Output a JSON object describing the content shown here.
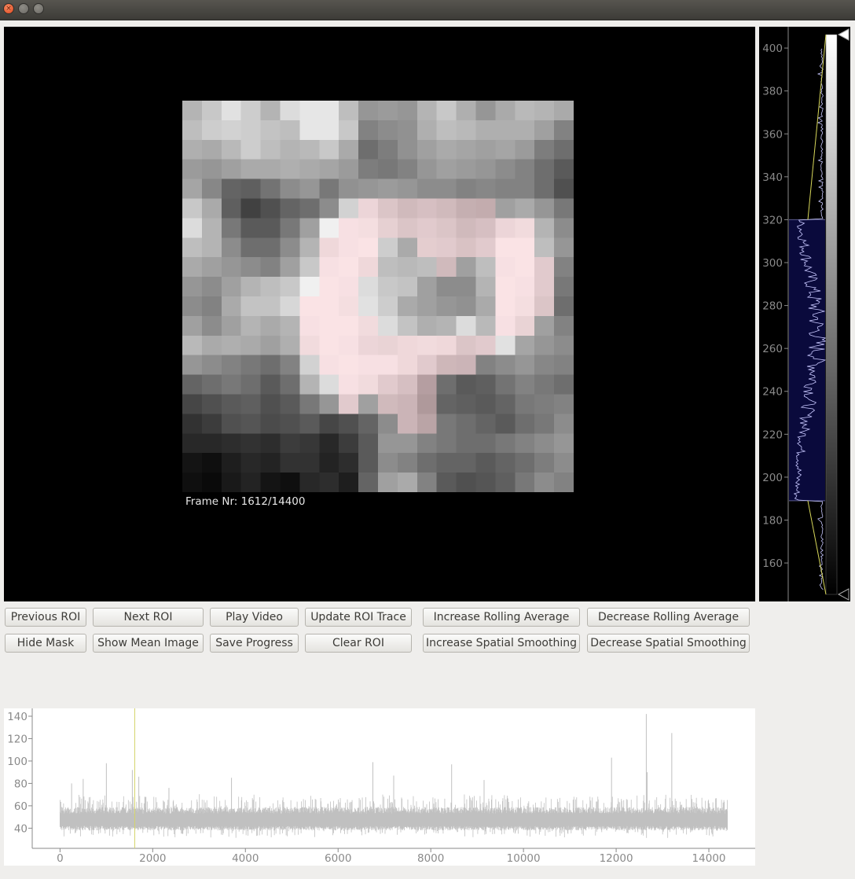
{
  "window": {
    "close_glyph": "×"
  },
  "viewer": {
    "frame_label": "Frame Nr: 1612/14400",
    "pixels": [
      [
        180,
        200,
        225,
        205,
        180,
        220,
        230,
        230,
        190,
        150,
        155,
        150,
        180,
        200,
        175,
        150,
        170,
        185,
        180,
        170
      ],
      [
        190,
        205,
        210,
        205,
        195,
        190,
        230,
        230,
        200,
        130,
        140,
        145,
        175,
        190,
        185,
        175,
        175,
        175,
        160,
        130
      ],
      [
        175,
        170,
        185,
        205,
        190,
        180,
        185,
        200,
        170,
        110,
        125,
        145,
        160,
        170,
        165,
        160,
        165,
        155,
        125,
        110
      ],
      [
        155,
        150,
        160,
        170,
        170,
        175,
        170,
        165,
        155,
        125,
        120,
        130,
        150,
        160,
        155,
        150,
        140,
        130,
        110,
        90
      ],
      [
        165,
        135,
        100,
        95,
        115,
        140,
        150,
        120,
        145,
        150,
        155,
        150,
        140,
        140,
        130,
        135,
        130,
        130,
        110,
        80
      ],
      [
        200,
        170,
        95,
        65,
        80,
        100,
        110,
        140,
        210,
        220,
        190,
        170,
        180,
        170,
        150,
        145,
        160,
        170,
        150,
        120
      ],
      [
        220,
        180,
        120,
        90,
        90,
        120,
        160,
        240,
        240,
        235,
        210,
        190,
        200,
        190,
        170,
        180,
        220,
        230,
        180,
        140
      ],
      [
        190,
        180,
        140,
        110,
        110,
        140,
        180,
        225,
        240,
        245,
        205,
        170,
        205,
        200,
        185,
        200,
        245,
        245,
        190,
        150
      ],
      [
        170,
        160,
        150,
        140,
        130,
        160,
        200,
        240,
        245,
        225,
        190,
        185,
        190,
        170,
        160,
        190,
        240,
        245,
        200,
        130
      ],
      [
        150,
        140,
        160,
        180,
        190,
        200,
        240,
        245,
        240,
        220,
        200,
        195,
        160,
        140,
        140,
        180,
        245,
        240,
        200,
        120
      ],
      [
        140,
        130,
        170,
        195,
        195,
        215,
        245,
        245,
        235,
        225,
        205,
        170,
        160,
        150,
        145,
        170,
        245,
        235,
        190,
        110
      ],
      [
        160,
        140,
        160,
        180,
        170,
        180,
        240,
        245,
        245,
        230,
        220,
        195,
        175,
        180,
        220,
        185,
        240,
        215,
        160,
        130
      ],
      [
        185,
        170,
        175,
        170,
        160,
        175,
        230,
        245,
        240,
        220,
        215,
        225,
        230,
        225,
        190,
        200,
        225,
        165,
        150,
        140
      ],
      [
        150,
        140,
        130,
        120,
        110,
        130,
        210,
        240,
        245,
        240,
        240,
        225,
        200,
        165,
        160,
        130,
        140,
        150,
        135,
        130
      ],
      [
        100,
        110,
        120,
        110,
        90,
        110,
        180,
        220,
        240,
        230,
        200,
        180,
        120,
        110,
        90,
        95,
        115,
        130,
        120,
        110
      ],
      [
        70,
        80,
        90,
        95,
        80,
        90,
        120,
        150,
        200,
        160,
        170,
        160,
        110,
        100,
        95,
        90,
        100,
        120,
        125,
        130
      ],
      [
        50,
        60,
        80,
        85,
        75,
        80,
        90,
        70,
        80,
        100,
        140,
        160,
        130,
        120,
        110,
        100,
        90,
        110,
        120,
        140
      ],
      [
        40,
        40,
        45,
        50,
        45,
        60,
        55,
        40,
        60,
        90,
        150,
        150,
        130,
        120,
        110,
        110,
        120,
        130,
        140,
        150
      ],
      [
        20,
        15,
        30,
        40,
        35,
        50,
        50,
        35,
        45,
        90,
        140,
        130,
        110,
        100,
        100,
        90,
        100,
        110,
        125,
        140
      ],
      [
        15,
        10,
        25,
        35,
        20,
        15,
        40,
        45,
        30,
        100,
        160,
        170,
        130,
        90,
        80,
        85,
        95,
        120,
        140,
        130
      ]
    ],
    "mask_cells": [
      [
        5,
        9
      ],
      [
        5,
        10
      ],
      [
        5,
        11
      ],
      [
        5,
        12
      ],
      [
        5,
        13
      ],
      [
        5,
        14
      ],
      [
        5,
        15
      ],
      [
        6,
        8
      ],
      [
        6,
        9
      ],
      [
        6,
        10
      ],
      [
        6,
        11
      ],
      [
        6,
        12
      ],
      [
        6,
        13
      ],
      [
        6,
        14
      ],
      [
        6,
        15
      ],
      [
        6,
        16
      ],
      [
        6,
        17
      ],
      [
        7,
        7
      ],
      [
        7,
        8
      ],
      [
        7,
        9
      ],
      [
        7,
        12
      ],
      [
        7,
        13
      ],
      [
        7,
        14
      ],
      [
        7,
        15
      ],
      [
        7,
        16
      ],
      [
        7,
        17
      ],
      [
        8,
        7
      ],
      [
        8,
        8
      ],
      [
        8,
        9
      ],
      [
        8,
        13
      ],
      [
        8,
        16
      ],
      [
        8,
        17
      ],
      [
        8,
        18
      ],
      [
        9,
        7
      ],
      [
        9,
        8
      ],
      [
        9,
        16
      ],
      [
        9,
        17
      ],
      [
        9,
        18
      ],
      [
        10,
        6
      ],
      [
        10,
        7
      ],
      [
        10,
        8
      ],
      [
        10,
        16
      ],
      [
        10,
        17
      ],
      [
        10,
        18
      ],
      [
        11,
        6
      ],
      [
        11,
        7
      ],
      [
        11,
        8
      ],
      [
        11,
        9
      ],
      [
        11,
        16
      ],
      [
        11,
        17
      ],
      [
        12,
        6
      ],
      [
        12,
        7
      ],
      [
        12,
        8
      ],
      [
        12,
        9
      ],
      [
        12,
        10
      ],
      [
        12,
        11
      ],
      [
        12,
        12
      ],
      [
        12,
        13
      ],
      [
        12,
        14
      ],
      [
        12,
        15
      ],
      [
        13,
        7
      ],
      [
        13,
        8
      ],
      [
        13,
        9
      ],
      [
        13,
        10
      ],
      [
        13,
        11
      ],
      [
        13,
        12
      ],
      [
        13,
        13
      ],
      [
        13,
        14
      ],
      [
        14,
        8
      ],
      [
        14,
        9
      ],
      [
        14,
        10
      ],
      [
        14,
        11
      ],
      [
        14,
        12
      ],
      [
        15,
        8
      ],
      [
        15,
        10
      ],
      [
        15,
        11
      ],
      [
        15,
        12
      ],
      [
        16,
        11
      ],
      [
        16,
        12
      ]
    ]
  },
  "histogram": {
    "ticks": [
      "400",
      "380",
      "360",
      "340",
      "320",
      "300",
      "280",
      "260",
      "240",
      "220",
      "200",
      "180",
      "160"
    ],
    "range": [
      145,
      407
    ],
    "region": [
      189,
      320
    ],
    "colors": {
      "region": "#0a0a3c",
      "trace": "#c8c8ff",
      "gradient_line": "#d8d85a",
      "tick_text": "#8a8a8a"
    }
  },
  "buttons": {
    "previous_roi": "Previous ROI",
    "next_roi": "Next ROI",
    "play_video": "Play Video",
    "update_roi_trace": "Update ROI Trace",
    "increase_rolling_average": "Increase Rolling Average",
    "decrease_rolling_average": "Decrease Rolling Average",
    "hide_mask": "Hide Mask",
    "show_mean_image": "Show Mean Image",
    "save_progress": "Save Progress",
    "clear_roi": "Clear ROI",
    "increase_spatial_smoothing": "Increase Spatial Smoothing",
    "decrease_spatial_smoothing": "Decrease Spatial Smoothing"
  },
  "chart_data": {
    "type": "line",
    "title": "",
    "xlabel": "",
    "ylabel": "",
    "xlim": [
      -600,
      15000
    ],
    "ylim": [
      22,
      147
    ],
    "x_ticks": [
      "0",
      "2000",
      "4000",
      "6000",
      "8000",
      "10000",
      "12000",
      "14000"
    ],
    "y_ticks": [
      "40",
      "60",
      "80",
      "100",
      "120",
      "140"
    ],
    "x_range": [
      0,
      14400
    ],
    "baseline": 47,
    "noise_spread": [
      40,
      56
    ],
    "peaks": [
      {
        "x": 250,
        "y": 80
      },
      {
        "x": 500,
        "y": 84
      },
      {
        "x": 1000,
        "y": 98
      },
      {
        "x": 1560,
        "y": 92
      },
      {
        "x": 1700,
        "y": 86
      },
      {
        "x": 2350,
        "y": 76
      },
      {
        "x": 3700,
        "y": 85
      },
      {
        "x": 6750,
        "y": 99
      },
      {
        "x": 7200,
        "y": 87
      },
      {
        "x": 8450,
        "y": 97
      },
      {
        "x": 9150,
        "y": 83
      },
      {
        "x": 11900,
        "y": 103
      },
      {
        "x": 12650,
        "y": 142
      },
      {
        "x": 12670,
        "y": 90
      },
      {
        "x": 13200,
        "y": 125
      }
    ],
    "current_frame": 1612,
    "colors": {
      "trace": "#c0c0c0",
      "frame_marker": "#d4d46a",
      "axis": "#888888"
    }
  }
}
